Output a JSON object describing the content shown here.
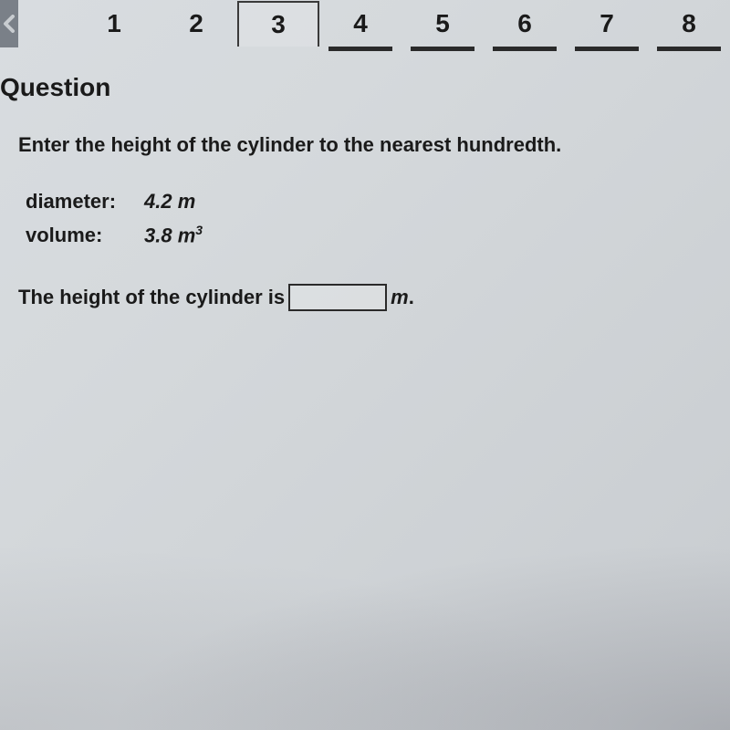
{
  "nav": {
    "items": [
      {
        "label": "1",
        "active": false,
        "underline": false
      },
      {
        "label": "2",
        "active": false,
        "underline": false
      },
      {
        "label": "3",
        "active": true,
        "underline": false
      },
      {
        "label": "4",
        "active": false,
        "underline": true
      },
      {
        "label": "5",
        "active": false,
        "underline": true
      },
      {
        "label": "6",
        "active": false,
        "underline": true
      },
      {
        "label": "7",
        "active": false,
        "underline": true
      },
      {
        "label": "8",
        "active": false,
        "underline": true
      }
    ]
  },
  "question": {
    "section_label": "Question",
    "prompt": "Enter the height of the cylinder to the nearest hundredth.",
    "diameter_label": "diameter:",
    "diameter_value": "4.2 m",
    "volume_label": "volume:",
    "volume_value": "3.8 m",
    "volume_exponent": "3",
    "answer_prefix": "The height of the cylinder is",
    "answer_unit": "m",
    "answer_suffix": "."
  }
}
